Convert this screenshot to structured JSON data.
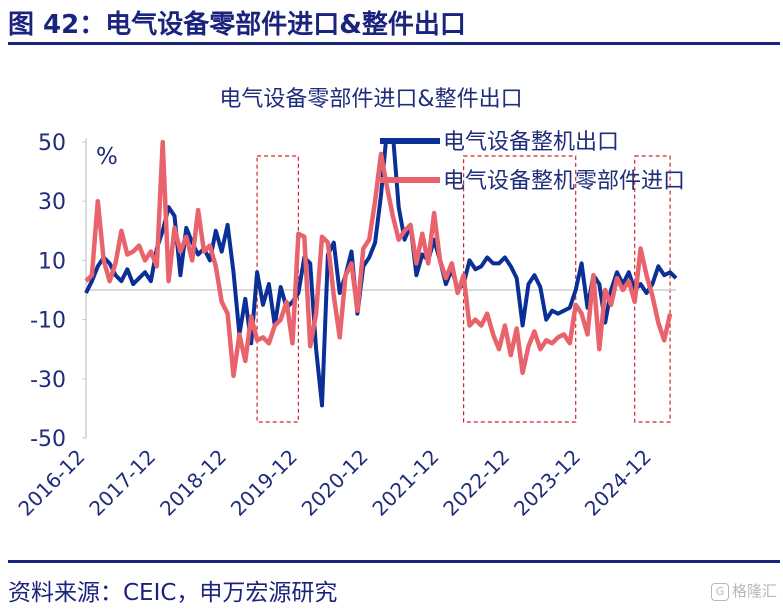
{
  "header": {
    "figure_title": "图 42：电气设备零部件进口&整件出口"
  },
  "footer": {
    "source": "资料来源：CEIC，申万宏源研究",
    "watermark_icon": "G",
    "watermark_text": "格隆汇"
  },
  "colors": {
    "series_export": "#0a2f96",
    "series_import": "#e8636b",
    "highlight_box": "#c9282d",
    "axis": "#cfcfcf",
    "text": "#1f2d7a"
  },
  "chart_data": {
    "type": "line",
    "title": "电气设备零部件进口&整件出口",
    "unit_label": "%",
    "xlabel": "",
    "ylabel": "%",
    "ylim": [
      -50,
      50
    ],
    "yticks": [
      50,
      30,
      10,
      -10,
      -30,
      -50
    ],
    "x_tick_labels": [
      "2016-12",
      "2017-12",
      "2018-12",
      "2019-12",
      "2020-12",
      "2021-12",
      "2022-12",
      "2023-12",
      "2024-12"
    ],
    "x_tick_month_index": [
      0,
      12,
      24,
      36,
      48,
      60,
      72,
      84,
      96
    ],
    "legend_position": "top-right",
    "highlight_periods": [
      {
        "start_month_index": 29,
        "end_month_index": 36
      },
      {
        "start_month_index": 64,
        "end_month_index": 83
      },
      {
        "start_month_index": 93,
        "end_month_index": 99
      }
    ],
    "series": [
      {
        "name": "电气设备整机出口",
        "color": "#0a2f96",
        "values": [
          -1,
          3,
          8,
          11,
          9,
          5,
          3,
          7,
          2,
          4,
          6,
          3,
          14,
          20,
          28,
          25,
          5,
          21,
          16,
          12,
          14,
          10,
          20,
          13,
          22,
          6,
          -15,
          -3,
          -18,
          6,
          -5,
          2,
          -12,
          1,
          -6,
          -4,
          -1,
          11,
          9,
          -20,
          -39,
          12,
          16,
          -1,
          5,
          13,
          -8,
          8,
          11,
          16,
          32,
          54,
          53,
          28,
          17,
          22,
          5,
          12,
          10,
          17,
          10,
          2,
          7,
          0,
          2,
          10,
          7,
          8,
          11,
          9,
          9,
          11,
          8,
          4,
          -12,
          2,
          5,
          1,
          -10,
          -7,
          -8,
          -7,
          -6,
          0,
          9,
          -6,
          5,
          2,
          -11,
          0,
          6,
          2,
          6,
          0,
          2,
          -1,
          2,
          8,
          5,
          6,
          4
        ]
      },
      {
        "name": "电气设备整机零部件进口",
        "color": "#e8636b",
        "values": [
          3,
          5,
          30,
          10,
          3,
          9,
          20,
          12,
          13,
          15,
          10,
          13,
          8,
          50,
          3,
          21,
          13,
          18,
          10,
          27,
          13,
          15,
          8,
          -4,
          -8,
          -29,
          -15,
          -24,
          -9,
          -17,
          -16,
          -18,
          -12,
          -10,
          -4,
          -18,
          19,
          18,
          -19,
          -8,
          18,
          16,
          -2,
          -16,
          5,
          9,
          -7,
          14,
          17,
          30,
          46,
          35,
          25,
          17,
          20,
          22,
          9,
          19,
          9,
          26,
          10,
          4,
          9,
          -1,
          5,
          -12,
          -10,
          -12,
          -8,
          -15,
          -20,
          -12,
          -22,
          -13,
          -28,
          -19,
          -14,
          -20,
          -17,
          -18,
          -16,
          -15,
          -18,
          -5,
          -8,
          -15,
          5,
          -20,
          0,
          -5,
          4,
          0,
          3,
          -4,
          14,
          5,
          -2,
          -11,
          -17,
          -8
        ]
      }
    ]
  }
}
